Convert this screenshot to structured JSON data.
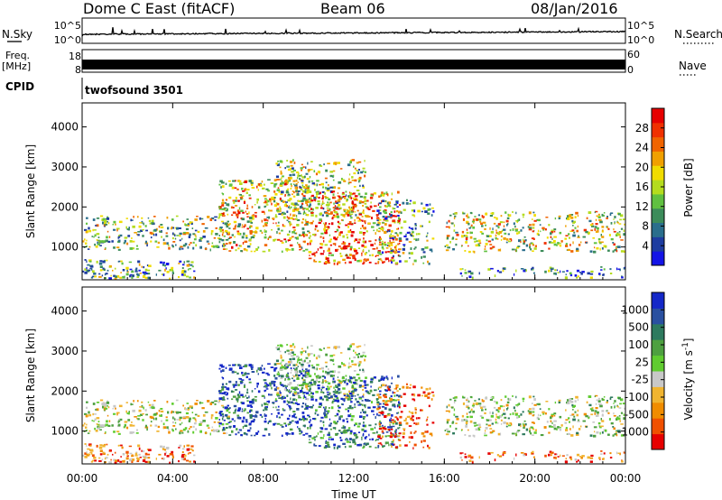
{
  "header": {
    "station_title": "Dome C East (fitACF)",
    "beam_label": "Beam 06",
    "date_label": "08/Jan/2016"
  },
  "strip_panels": {
    "nsky": {
      "label": "N.Sky",
      "tick_top": "10^5",
      "tick_bottom": "10^0"
    },
    "nsearch": {
      "label": "N.Search",
      "tick_top": "10^5",
      "tick_bottom": "10^0"
    },
    "freq": {
      "label_line1": "Freq.",
      "label_line2": "[MHz]",
      "tick_top": "18",
      "tick_bottom": "8"
    },
    "nave": {
      "label": "Nave",
      "tick_top": "60",
      "tick_bottom": "0"
    },
    "cpid": {
      "label": "CPID",
      "program": "twofsound 3501"
    }
  },
  "chart_data": [
    {
      "type": "heatmap",
      "name": "power",
      "ylabel": "Slant Range [km]",
      "xlabel": "",
      "x_ticks": [
        "00:00",
        "04:00",
        "08:00",
        "12:00",
        "16:00",
        "20:00",
        "00:00"
      ],
      "x_range_hours": [
        0,
        24
      ],
      "y_ticks": [
        1000,
        2000,
        3000,
        4000
      ],
      "y_range_km": [
        180,
        4600
      ],
      "colorbar": {
        "label": "Power [dB]",
        "ticks": [
          "4",
          "8",
          "12",
          "16",
          "20",
          "24",
          "28"
        ],
        "range": [
          0,
          32
        ],
        "colors": [
          "#1414e6",
          "#1e3ca0",
          "#2a6e8c",
          "#3c8c5a",
          "#60c040",
          "#b4dc1e",
          "#f0dc00",
          "#f0a000",
          "#f06400",
          "#f03000",
          "#e60000"
        ]
      }
    },
    {
      "type": "heatmap",
      "name": "velocity",
      "ylabel": "Slant Range [km]",
      "xlabel": "Time UT",
      "x_ticks": [
        "00:00",
        "04:00",
        "08:00",
        "12:00",
        "16:00",
        "20:00",
        "00:00"
      ],
      "x_range_hours": [
        0,
        24
      ],
      "y_ticks": [
        1000,
        2000,
        3000,
        4000
      ],
      "y_range_km": [
        180,
        4600
      ],
      "colorbar": {
        "label": "Velocity [m s^-1]",
        "ticks": [
          "1000",
          "500",
          "100",
          "25",
          "-25",
          "-100",
          "-500",
          "-1000"
        ],
        "colors": [
          "#1428c8",
          "#2a50a0",
          "#2e7a5e",
          "#4ea040",
          "#60cc30",
          "#c8c8c8",
          "#f0b430",
          "#f08c00",
          "#f05000",
          "#e60000"
        ]
      }
    }
  ]
}
